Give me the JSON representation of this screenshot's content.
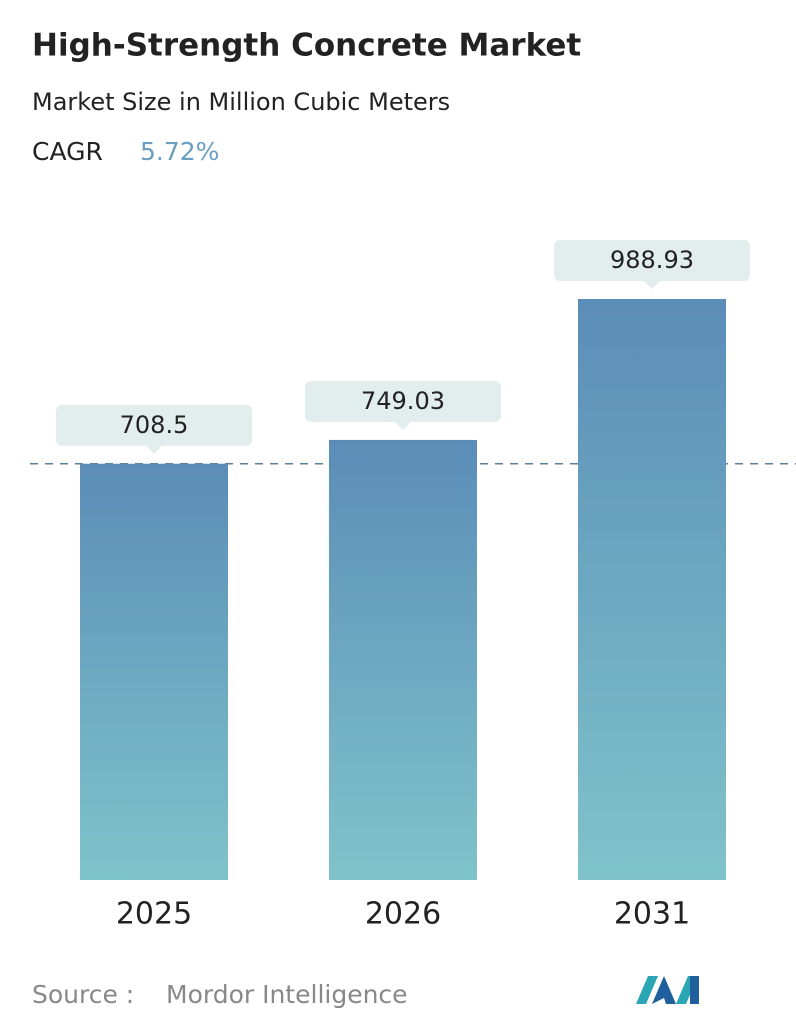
{
  "chart_data": {
    "type": "bar",
    "title": "High-Strength Concrete Market",
    "subtitle": "Market Size in Million Cubic Meters",
    "cagr_label": "CAGR",
    "cagr_value": "5.72%",
    "categories": [
      "2025",
      "2026",
      "2031"
    ],
    "values": [
      708.5,
      749.03,
      988.93
    ],
    "color_top": "#5b8db8",
    "color_bottom": "#7fc3ca",
    "source_label": "Source :",
    "source": "Mordor Intelligence"
  }
}
